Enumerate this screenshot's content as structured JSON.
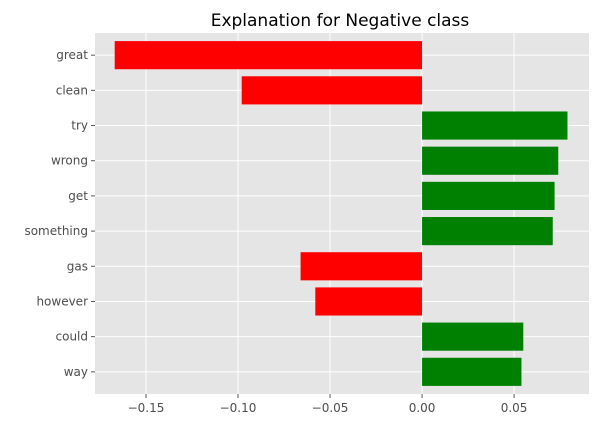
{
  "chart_data": {
    "type": "bar",
    "orientation": "horizontal",
    "title": "Explanation for Negative class",
    "xlabel": "",
    "ylabel": "",
    "categories": [
      "great",
      "clean",
      "try",
      "wrong",
      "get",
      "something",
      "gas",
      "however",
      "could",
      "way"
    ],
    "values": [
      -0.167,
      -0.098,
      0.079,
      0.074,
      0.072,
      0.071,
      -0.066,
      -0.058,
      0.055,
      0.054
    ],
    "xlim": [
      -0.1777,
      0.0907
    ],
    "xticks": [
      -0.15,
      -0.1,
      -0.05,
      0.0,
      0.05
    ],
    "xtick_labels": [
      "−0.15",
      "−0.10",
      "−0.05",
      "0.00",
      "0.05"
    ],
    "grid": true,
    "colors": {
      "positive": "#008000",
      "negative": "#ff0000",
      "background": "#e5e5e5",
      "grid": "#ffffff",
      "tick_text": "#4d4d4d"
    }
  }
}
